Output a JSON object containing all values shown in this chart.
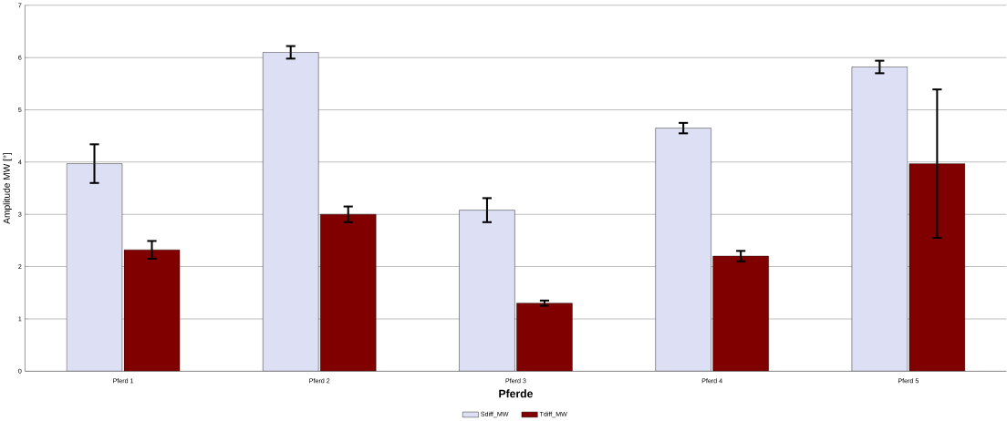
{
  "chart_data": {
    "type": "bar",
    "xlabel": "Pferde",
    "ylabel": "Amplitude MW [°]",
    "categories": [
      "Pferd 1",
      "Pferd 2",
      "Pferd 3",
      "Pferd 4",
      "Pferd 5"
    ],
    "series": [
      {
        "name": "Sdiff_MW",
        "color": "#dde0f4",
        "values": [
          3.97,
          6.1,
          3.08,
          4.65,
          5.82
        ],
        "errors": [
          0.37,
          0.12,
          0.23,
          0.1,
          0.12
        ]
      },
      {
        "name": "Tdiff_MW",
        "color": "#800000",
        "values": [
          2.32,
          3.0,
          1.3,
          2.2,
          3.97
        ],
        "errors": [
          0.17,
          0.15,
          0.05,
          0.1,
          1.42
        ]
      }
    ],
    "ylim": [
      0,
      7
    ],
    "yticks": [
      0,
      1,
      2,
      3,
      4,
      5,
      6,
      7
    ],
    "grid": "y",
    "legend": "bottom"
  }
}
